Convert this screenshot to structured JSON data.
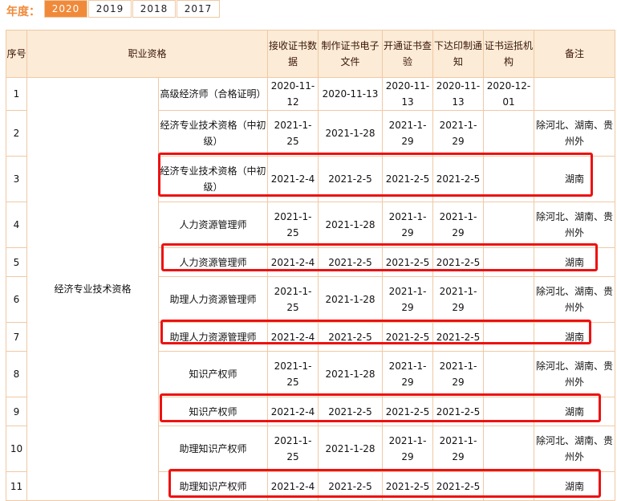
{
  "year_filter": {
    "label": "年度：",
    "tabs": [
      "2020",
      "2019",
      "2018",
      "2017"
    ],
    "active": "2020"
  },
  "table": {
    "headers": [
      "序号",
      "职业资格",
      "",
      "接收证书数据",
      "制作证书电子文件",
      "开通证书查验",
      "下达印制通知",
      "证书运抵机构",
      "备注"
    ],
    "group": "经济专业技术资格",
    "rows": [
      {
        "no": "1",
        "name": "高级经济师（合格证明）",
        "c1": "2020-11-12",
        "c2": "2020-11-13",
        "c3": "2020-11-13",
        "c4": "2020-11-13",
        "c5": "2020-12-01",
        "note": ""
      },
      {
        "no": "2",
        "name": "经济专业技术资格（中初级）",
        "c1": "2021-1-25",
        "c2": "2021-1-28",
        "c3": "2021-1-29",
        "c4": "2021-1-29",
        "c5": "",
        "note": "除河北、湖南、贵州外"
      },
      {
        "no": "3",
        "name": "经济专业技术资格（中初级）",
        "c1": "2021-2-4",
        "c2": "2021-2-5",
        "c3": "2021-2-5",
        "c4": "2021-2-5",
        "c5": "",
        "note": "湖南",
        "highlight": true
      },
      {
        "no": "4",
        "name": "人力资源管理师",
        "c1": "2021-1-25",
        "c2": "2021-1-28",
        "c3": "2021-1-29",
        "c4": "2021-1-29",
        "c5": "",
        "note": "除河北、湖南、贵州外"
      },
      {
        "no": "5",
        "name": "人力资源管理师",
        "c1": "2021-2-4",
        "c2": "2021-2-5",
        "c3": "2021-2-5",
        "c4": "2021-2-5",
        "c5": "",
        "note": "湖南",
        "highlight": true
      },
      {
        "no": "6",
        "name": "助理人力资源管理师",
        "c1": "2021-1-25",
        "c2": "2021-1-28",
        "c3": "2021-1-29",
        "c4": "2021-1-29",
        "c5": "",
        "note": "除河北、湖南、贵州外"
      },
      {
        "no": "7",
        "name": "助理人力资源管理师",
        "c1": "2021-2-4",
        "c2": "2021-2-5",
        "c3": "2021-2-5",
        "c4": "2021-2-5",
        "c5": "",
        "note": "湖南",
        "highlight": true
      },
      {
        "no": "8",
        "name": "知识产权师",
        "c1": "2021-1-25",
        "c2": "2021-1-28",
        "c3": "2021-1-29",
        "c4": "2021-1-29",
        "c5": "",
        "note": "除河北、湖南、贵州外"
      },
      {
        "no": "9",
        "name": "知识产权师",
        "c1": "2021-2-4",
        "c2": "2021-2-5",
        "c3": "2021-2-5",
        "c4": "2021-2-5",
        "c5": "",
        "note": "湖南",
        "highlight": true
      },
      {
        "no": "10",
        "name": "助理知识产权师",
        "c1": "2021-1-25",
        "c2": "2021-1-28",
        "c3": "2021-1-29",
        "c4": "2021-1-29",
        "c5": "",
        "note": "除河北、湖南、贵州外"
      },
      {
        "no": "11",
        "name": "助理知识产权师",
        "c1": "2021-2-4",
        "c2": "2021-2-5",
        "c3": "2021-2-5",
        "c4": "2021-2-5",
        "c5": "",
        "note": "湖南",
        "highlight": true
      }
    ]
  },
  "colors": {
    "accent": "#f08a3a",
    "border": "#f0c9a3",
    "header_bg": "#fbebd7",
    "highlight": "#ee1111"
  }
}
